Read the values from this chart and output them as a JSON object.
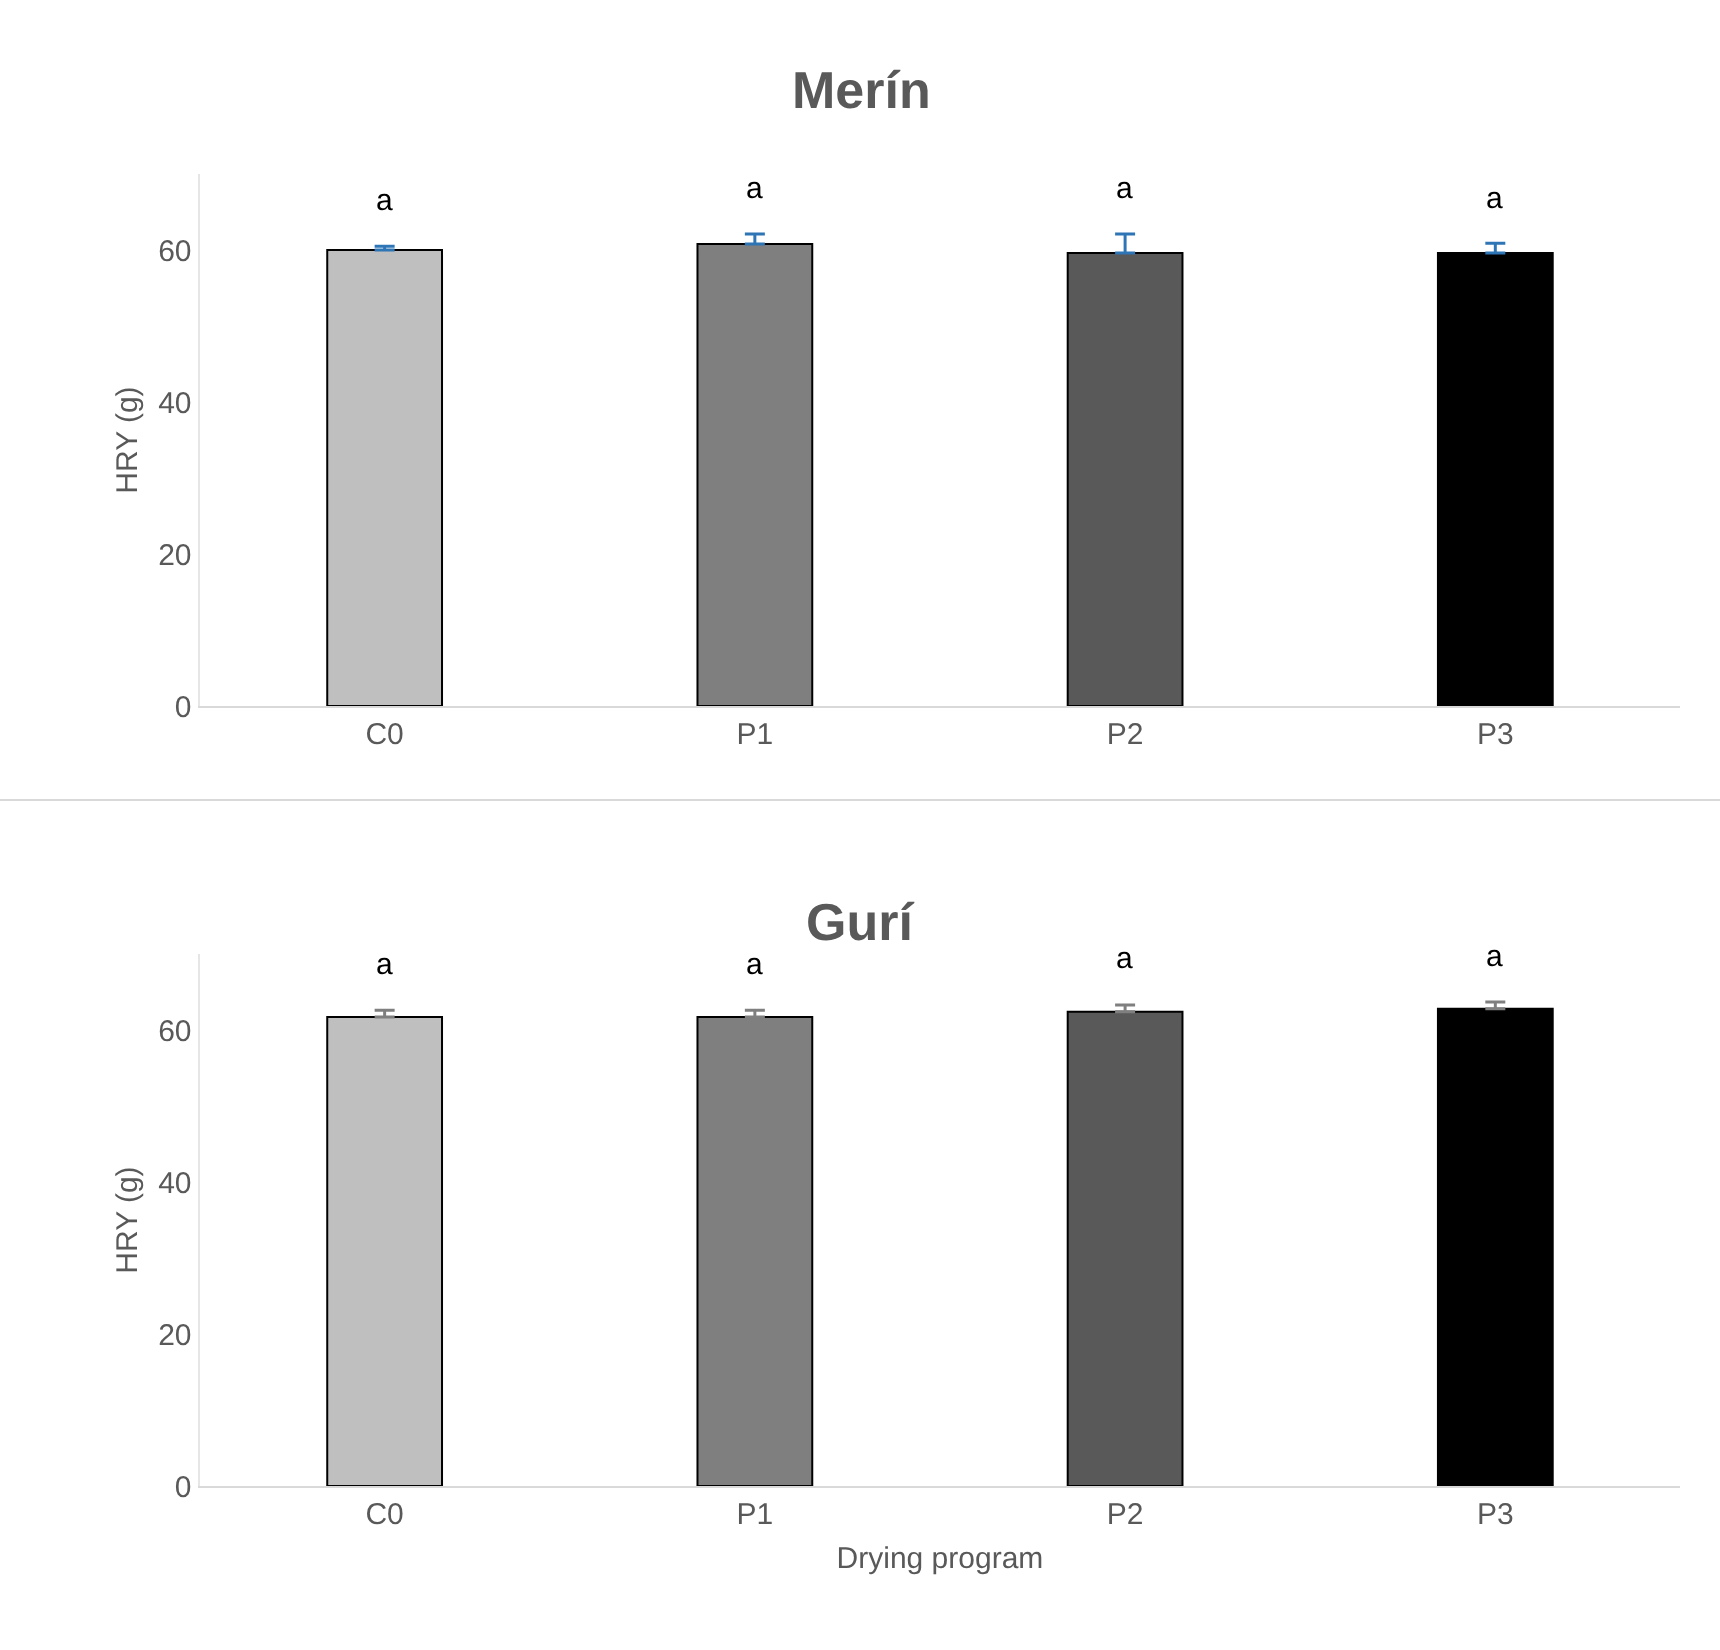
{
  "chart_data": [
    {
      "type": "bar",
      "title": "Merín",
      "ylabel": "HRY (g)",
      "categories": [
        "C0",
        "P1",
        "P2",
        "P3"
      ],
      "values": [
        60.0,
        60.8,
        59.6,
        59.6
      ],
      "colors": [
        "#bfbfbf",
        "#7f7f7f",
        "#595959",
        "#000000"
      ],
      "errors": [
        [
          60.0,
          60.5
        ],
        [
          60.8,
          62.1
        ],
        [
          59.6,
          62.1
        ],
        [
          59.6,
          60.9
        ]
      ],
      "ylim": [
        0,
        70
      ],
      "yticks": [
        0,
        20,
        40,
        60
      ],
      "grid": false,
      "legend": false,
      "annotations": [
        "a",
        "a",
        "a",
        "a"
      ]
    },
    {
      "type": "bar",
      "title": "Gurí",
      "ylabel": "HRY (g)",
      "xlabel": "Drying program",
      "categories": [
        "C0",
        "P1",
        "P2",
        "P3"
      ],
      "values": [
        61.7,
        61.7,
        62.4,
        62.8
      ],
      "colors": [
        "#bfbfbf",
        "#7f7f7f",
        "#595959",
        "#000000"
      ],
      "errors": [
        [
          61.7,
          62.6
        ],
        [
          61.7,
          62.6
        ],
        [
          62.4,
          63.3
        ],
        [
          62.8,
          63.7
        ]
      ],
      "ylim": [
        0,
        70
      ],
      "yticks": [
        0,
        20,
        40,
        60
      ],
      "grid": false,
      "legend": false,
      "annotations": [
        "a",
        "a",
        "a",
        "a"
      ]
    }
  ]
}
